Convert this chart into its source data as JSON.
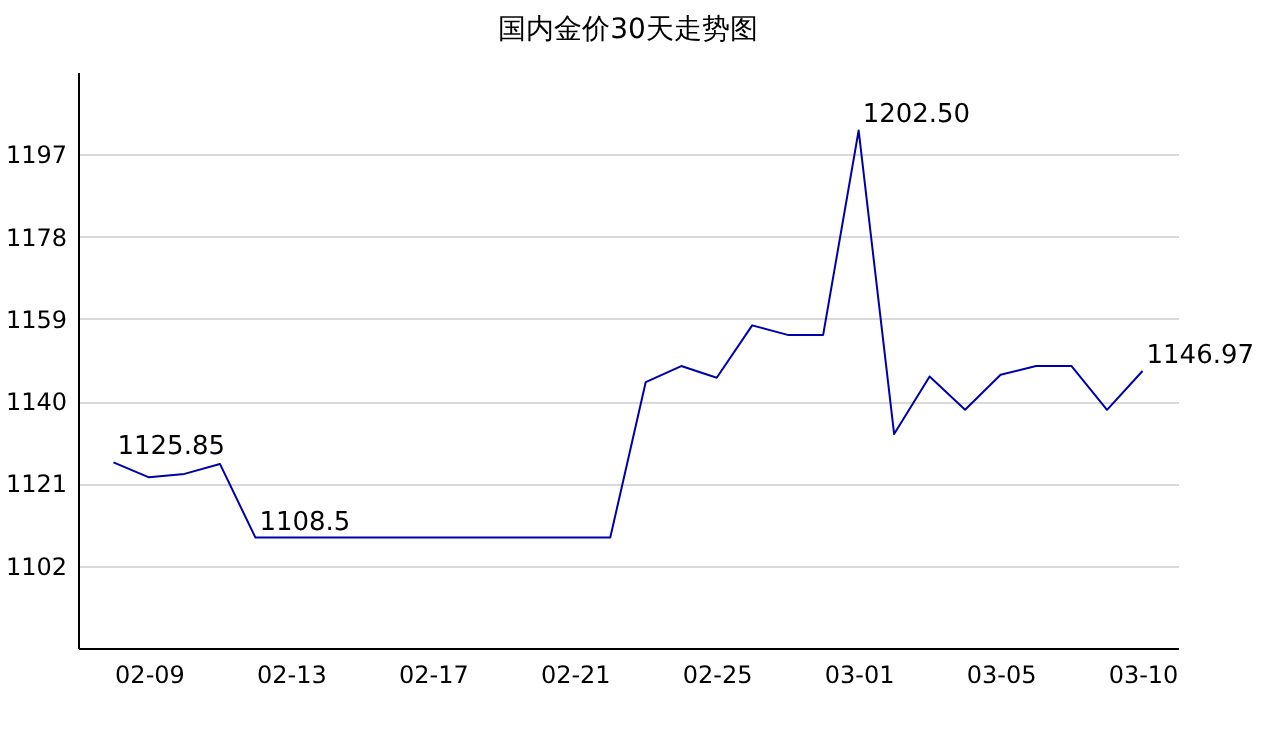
{
  "chart_data": {
    "type": "line",
    "title": "国内金价30天走势图",
    "categories": [
      null,
      "02-09",
      null,
      null,
      null,
      "02-13",
      null,
      null,
      null,
      "02-17",
      null,
      null,
      null,
      "02-21",
      null,
      null,
      null,
      "02-25",
      null,
      null,
      null,
      "03-01",
      null,
      null,
      null,
      "03-05",
      null,
      null,
      null,
      "03-10"
    ],
    "series": [
      {
        "color": "#0000aa",
        "values": [
          1125.85,
          1122.4,
          1123.2,
          1125.5,
          1108.5,
          1108.5,
          1108.5,
          1108.5,
          1108.5,
          1108.5,
          1108.5,
          1108.5,
          1108.5,
          1108.5,
          1108.5,
          1144.4,
          1148.1,
          1145.4,
          1157.5,
          1155.3,
          1155.3,
          1202.5,
          1132.4,
          1145.7,
          1138,
          1146.1,
          1148.1,
          1148.1,
          1138,
          1146.97
        ],
        "value_labels": [
          "1125.85",
          null,
          null,
          null,
          "1108.5",
          null,
          null,
          null,
          null,
          null,
          null,
          null,
          null,
          null,
          null,
          null,
          null,
          null,
          null,
          null,
          null,
          "1202.50",
          null,
          null,
          null,
          null,
          null,
          null,
          null,
          "1146.97"
        ]
      }
    ],
    "ylim": [
      1083,
      1216
    ],
    "yticks": [
      1102,
      1121,
      1140,
      1159,
      1178,
      1197
    ],
    "grid": "y",
    "legend": false,
    "marker": "none",
    "line_style": "solid"
  }
}
